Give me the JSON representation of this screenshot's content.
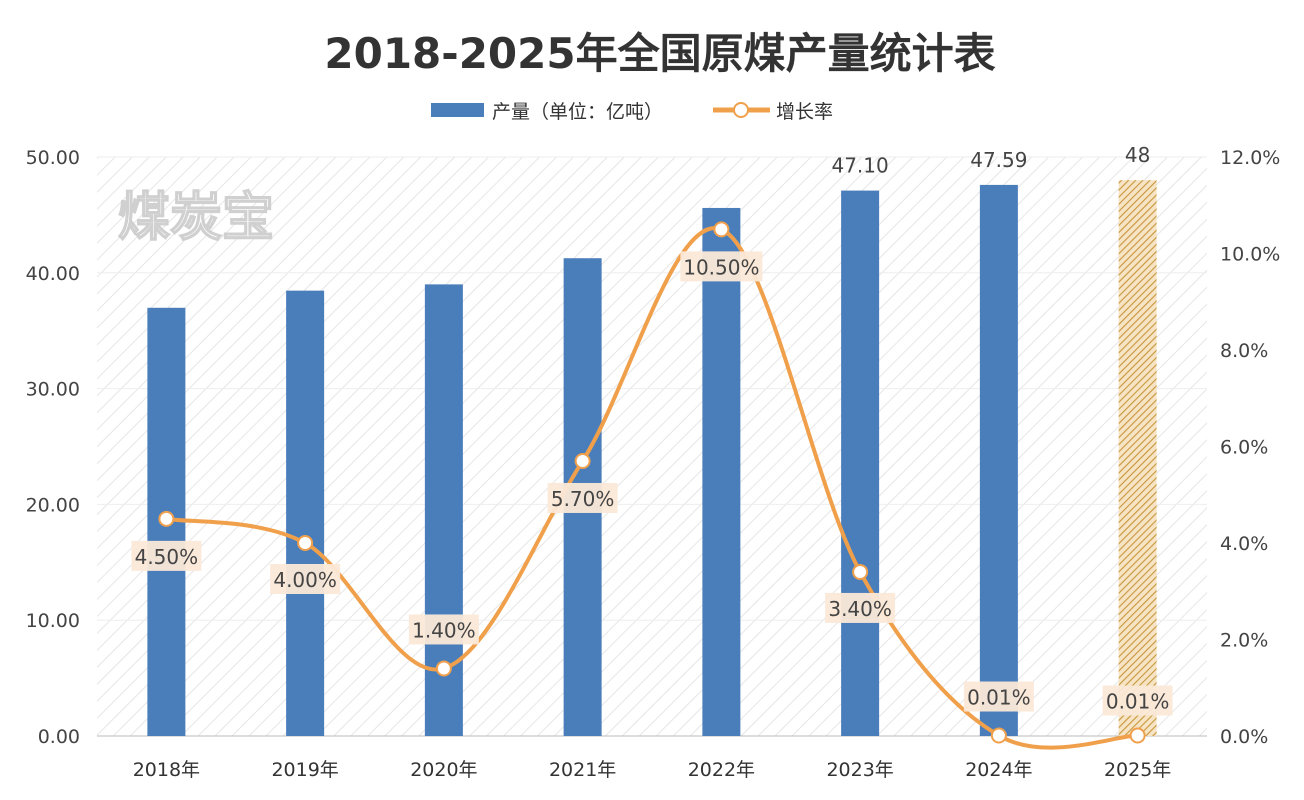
{
  "chart_data": {
    "type": "bar+line",
    "title": "2018-2025年全国原煤产量统计表",
    "categories": [
      "2018年",
      "2019年",
      "2020年",
      "2021年",
      "2022年",
      "2023年",
      "2024年",
      "2025年"
    ],
    "series": [
      {
        "name": "产量（单位：亿吨）",
        "type": "bar",
        "axis": "left",
        "values": [
          36.98,
          38.46,
          39.0,
          41.26,
          45.6,
          47.1,
          47.59,
          48
        ],
        "data_labels": [
          null,
          null,
          null,
          null,
          null,
          "47.10",
          "47.59",
          "48"
        ],
        "color": "#4a7ebb",
        "hatched_last": true,
        "hatched_color": "#c8963c"
      },
      {
        "name": "增长率",
        "type": "line",
        "axis": "right",
        "smooth": true,
        "values": [
          4.5,
          4.0,
          1.4,
          5.7,
          10.5,
          3.4,
          0.01,
          0.01
        ],
        "data_labels": [
          "4.50%",
          "4.00%",
          "1.40%",
          "5.70%",
          "10.50%",
          "3.40%",
          "0.01%",
          "0.01%"
        ],
        "color": "#f0a04b"
      }
    ],
    "y_left": {
      "range": [
        0,
        50
      ],
      "ticks": [
        "0.00",
        "10.00",
        "20.00",
        "30.00",
        "40.00",
        "50.00"
      ]
    },
    "y_right": {
      "range": [
        0,
        12
      ],
      "ticks": [
        "0.0%",
        "2.0%",
        "4.0%",
        "6.0%",
        "8.0%",
        "10.0%",
        "12.0%"
      ]
    },
    "legend": "top",
    "grid": true,
    "watermark": "煤炭宝"
  }
}
